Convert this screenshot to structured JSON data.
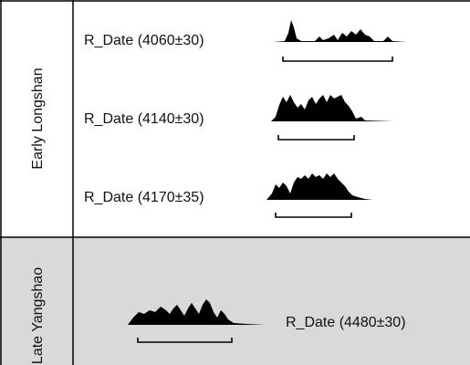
{
  "phases": [
    {
      "label": "Early Longshan",
      "dates": [
        "R_Date (4060±30)",
        "R_Date (4140±30)",
        "R_Date (4170±35)"
      ]
    },
    {
      "label": "Late Yangshao",
      "dates": [
        "R_Date (4480±30)"
      ]
    }
  ]
}
